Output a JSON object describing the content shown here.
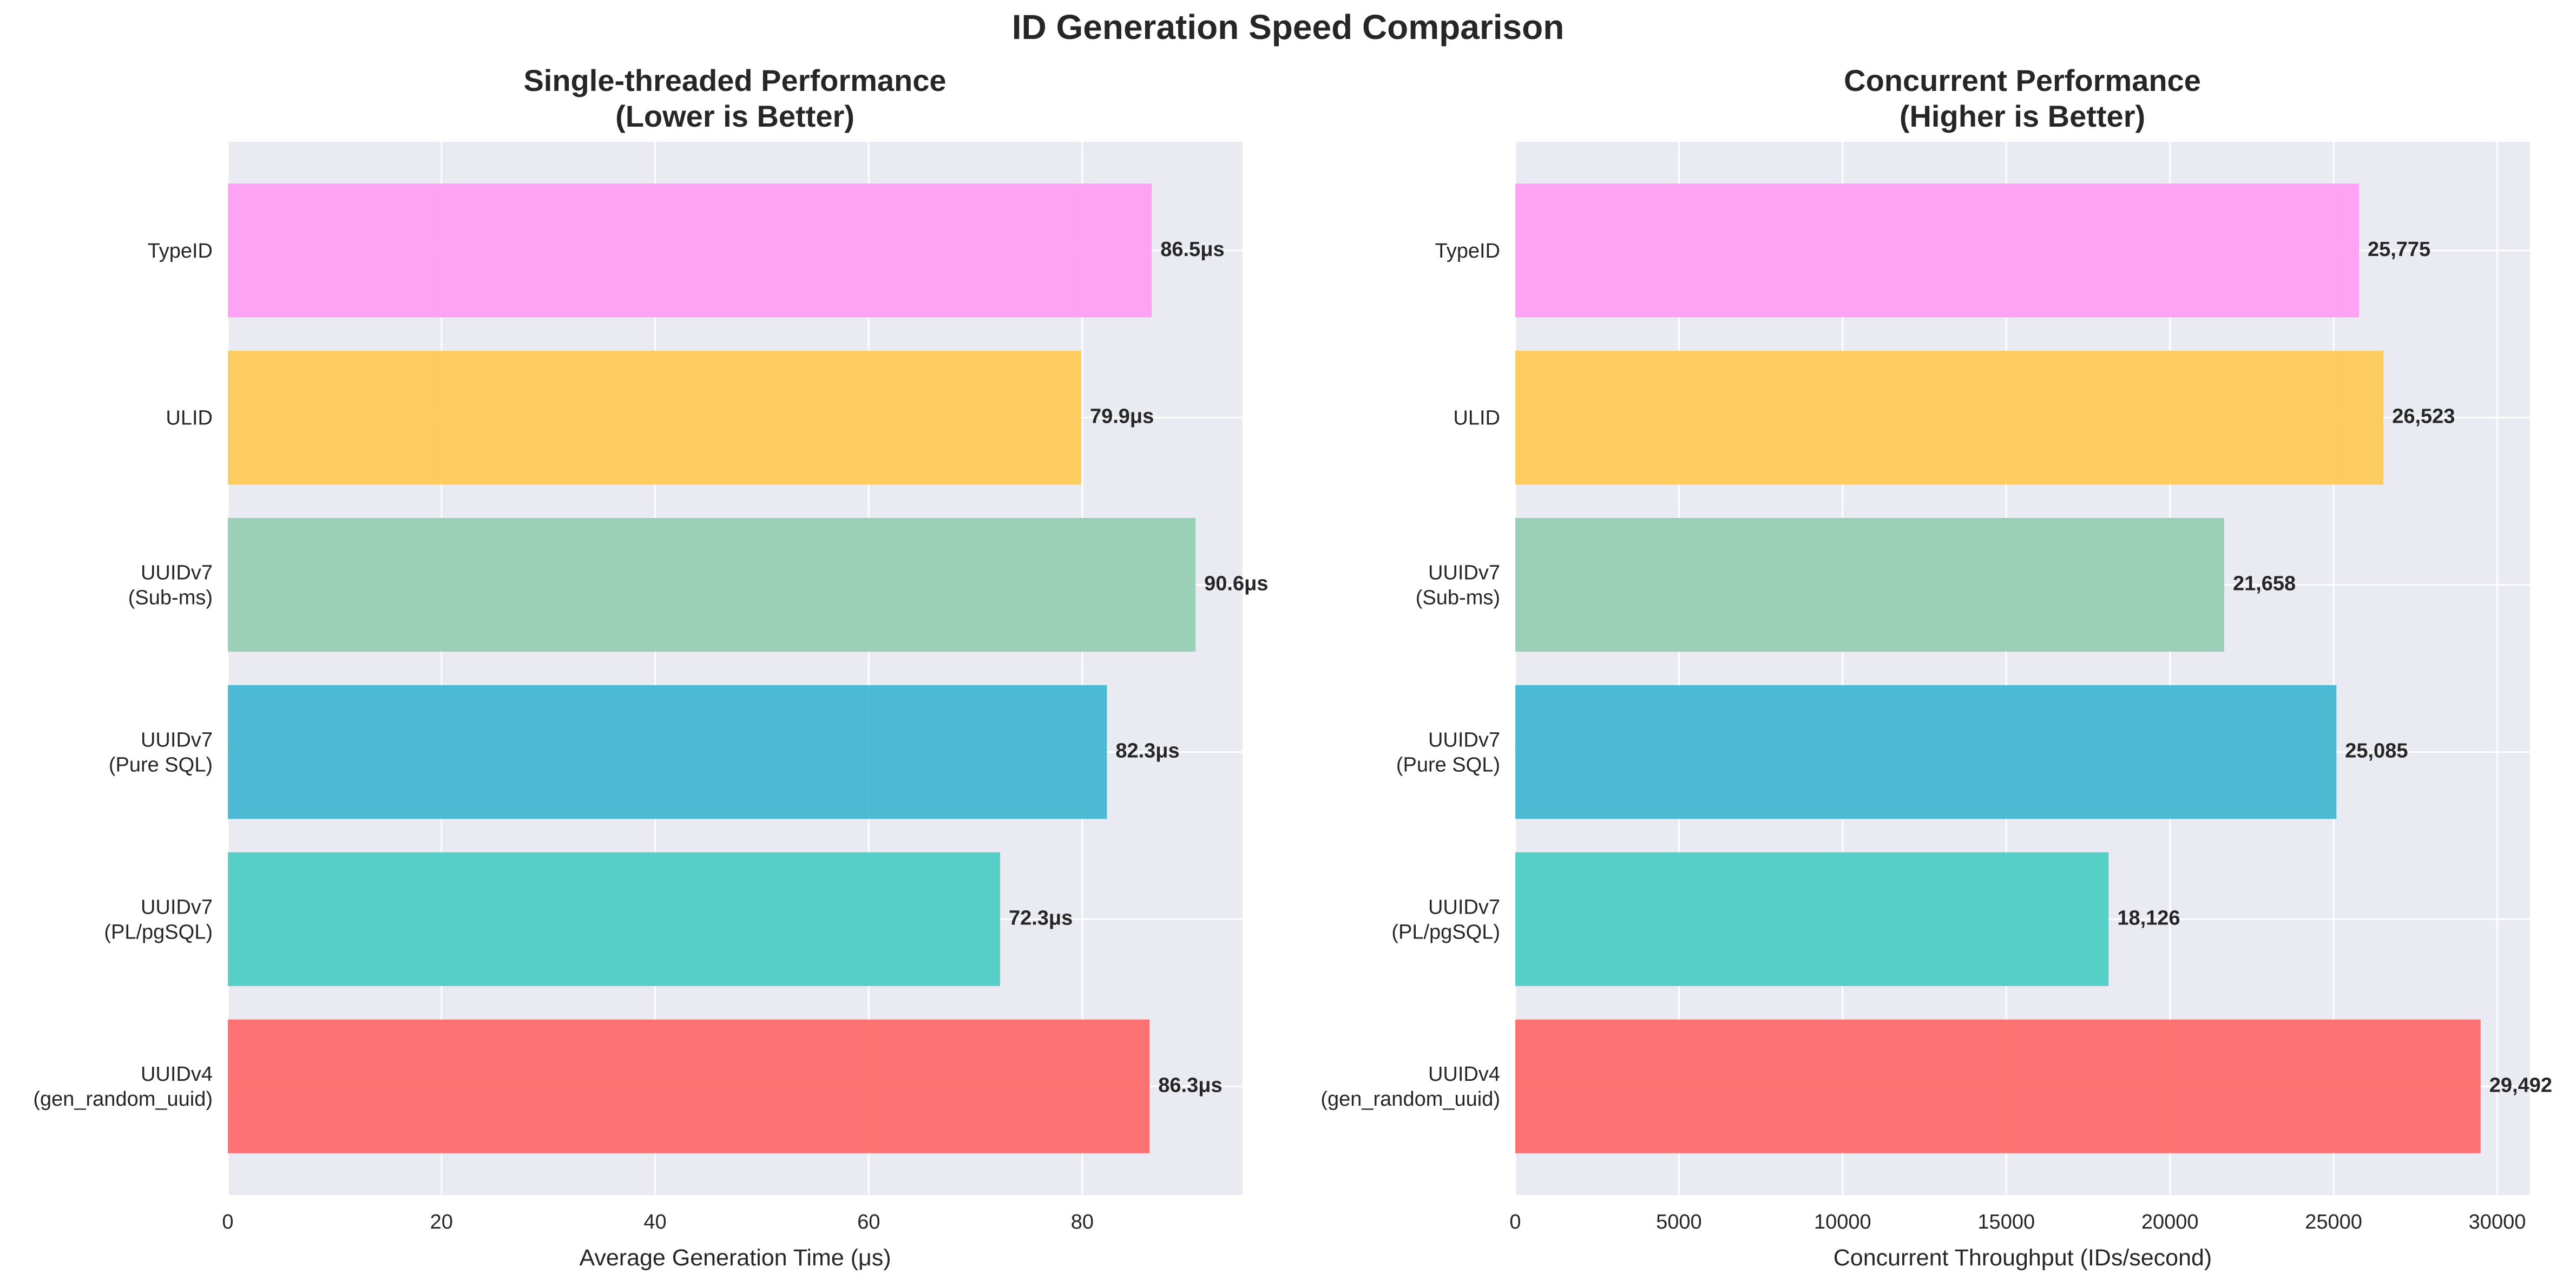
{
  "figure_title": "ID Generation Speed Comparison",
  "chart_data": [
    {
      "type": "bar",
      "orientation": "horizontal",
      "title_lines": [
        "Single-threaded Performance",
        "(Lower is Better)"
      ],
      "xlabel": "Average Generation Time (μs)",
      "ylabel": "",
      "xlim": [
        0,
        95
      ],
      "xticks": [
        0,
        20,
        40,
        60,
        80
      ],
      "tick_labels": [
        "0",
        "20",
        "40",
        "60",
        "80"
      ],
      "grid": true,
      "categories": [
        [
          "UUIDv4",
          "(gen_random_uuid)"
        ],
        [
          "UUIDv7",
          "(PL/pgSQL)"
        ],
        [
          "UUIDv7",
          "(Pure SQL)"
        ],
        [
          "UUIDv7",
          "(Sub-ms)"
        ],
        [
          "ULID"
        ],
        [
          "TypeID"
        ]
      ],
      "values": [
        86.3,
        72.3,
        82.3,
        90.6,
        79.9,
        86.5
      ],
      "value_labels": [
        "86.3μs",
        "72.3μs",
        "82.3μs",
        "90.6μs",
        "79.9μs",
        "86.5μs"
      ],
      "colors": [
        "#FF6B6B",
        "#4ECDC4",
        "#45B7D1",
        "#96CEB4",
        "#FECA57",
        "#FF9FF3"
      ]
    },
    {
      "type": "bar",
      "orientation": "horizontal",
      "title_lines": [
        "Concurrent Performance",
        "(Higher is Better)"
      ],
      "xlabel": "Concurrent Throughput (IDs/second)",
      "ylabel": "",
      "xlim": [
        0,
        31000
      ],
      "xticks": [
        0,
        5000,
        10000,
        15000,
        20000,
        25000,
        30000
      ],
      "tick_labels": [
        "0",
        "5000",
        "10000",
        "15000",
        "20000",
        "25000",
        "30000"
      ],
      "grid": true,
      "categories": [
        [
          "UUIDv4",
          "(gen_random_uuid)"
        ],
        [
          "UUIDv7",
          "(PL/pgSQL)"
        ],
        [
          "UUIDv7",
          "(Pure SQL)"
        ],
        [
          "UUIDv7",
          "(Sub-ms)"
        ],
        [
          "ULID"
        ],
        [
          "TypeID"
        ]
      ],
      "values": [
        29492,
        18126,
        25085,
        21658,
        26523,
        25775
      ],
      "value_labels": [
        "29,492",
        "18,126",
        "25,085",
        "21,658",
        "26,523",
        "25,775"
      ],
      "colors": [
        "#FF6B6B",
        "#4ECDC4",
        "#45B7D1",
        "#96CEB4",
        "#FECA57",
        "#FF9FF3"
      ]
    }
  ]
}
